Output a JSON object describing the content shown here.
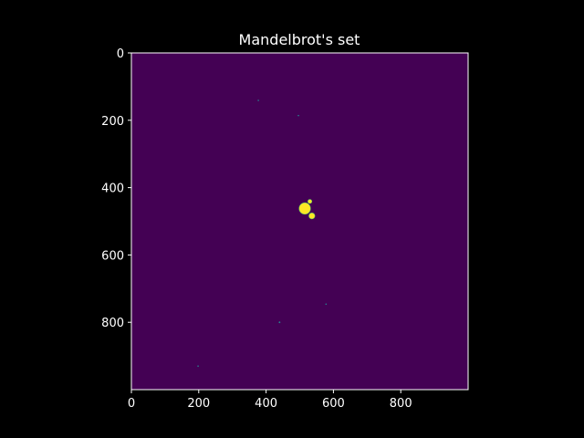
{
  "chart_data": {
    "type": "heatmap",
    "title": "Mandelbrot's set",
    "xlabel": "",
    "ylabel": "",
    "xlim": [
      0,
      1000
    ],
    "ylim": [
      1000,
      0
    ],
    "x_ticks": [
      0,
      200,
      400,
      600,
      800
    ],
    "y_ticks": [
      0,
      200,
      400,
      600,
      800
    ],
    "grid": false,
    "colors": {
      "figure_background": "#000000",
      "background_value_color": "#440154",
      "set_color": "#fde725",
      "edge_color": "#26828e",
      "axes_color": "#ffffff"
    },
    "image_size": [
      1000,
      1000
    ],
    "features": [
      {
        "name": "main-cardioid",
        "x": 515,
        "y": 462,
        "r": 17,
        "value": "set"
      },
      {
        "name": "period-2-bulb",
        "x": 536,
        "y": 484,
        "r": 9,
        "value": "set"
      },
      {
        "name": "upper-bulb",
        "x": 530,
        "y": 441,
        "r": 6,
        "value": "set"
      },
      {
        "name": "minibrot-1",
        "x": 377,
        "y": 141,
        "r": 1.5,
        "value": "edge"
      },
      {
        "name": "minibrot-2",
        "x": 496,
        "y": 186,
        "r": 1.5,
        "value": "edge"
      },
      {
        "name": "minibrot-3",
        "x": 440,
        "y": 800,
        "r": 2.5,
        "value": "edge"
      },
      {
        "name": "minibrot-4",
        "x": 578,
        "y": 746,
        "r": 1.2,
        "value": "edge"
      },
      {
        "name": "minibrot-5",
        "x": 198,
        "y": 930,
        "r": 1.2,
        "value": "edge"
      }
    ]
  }
}
